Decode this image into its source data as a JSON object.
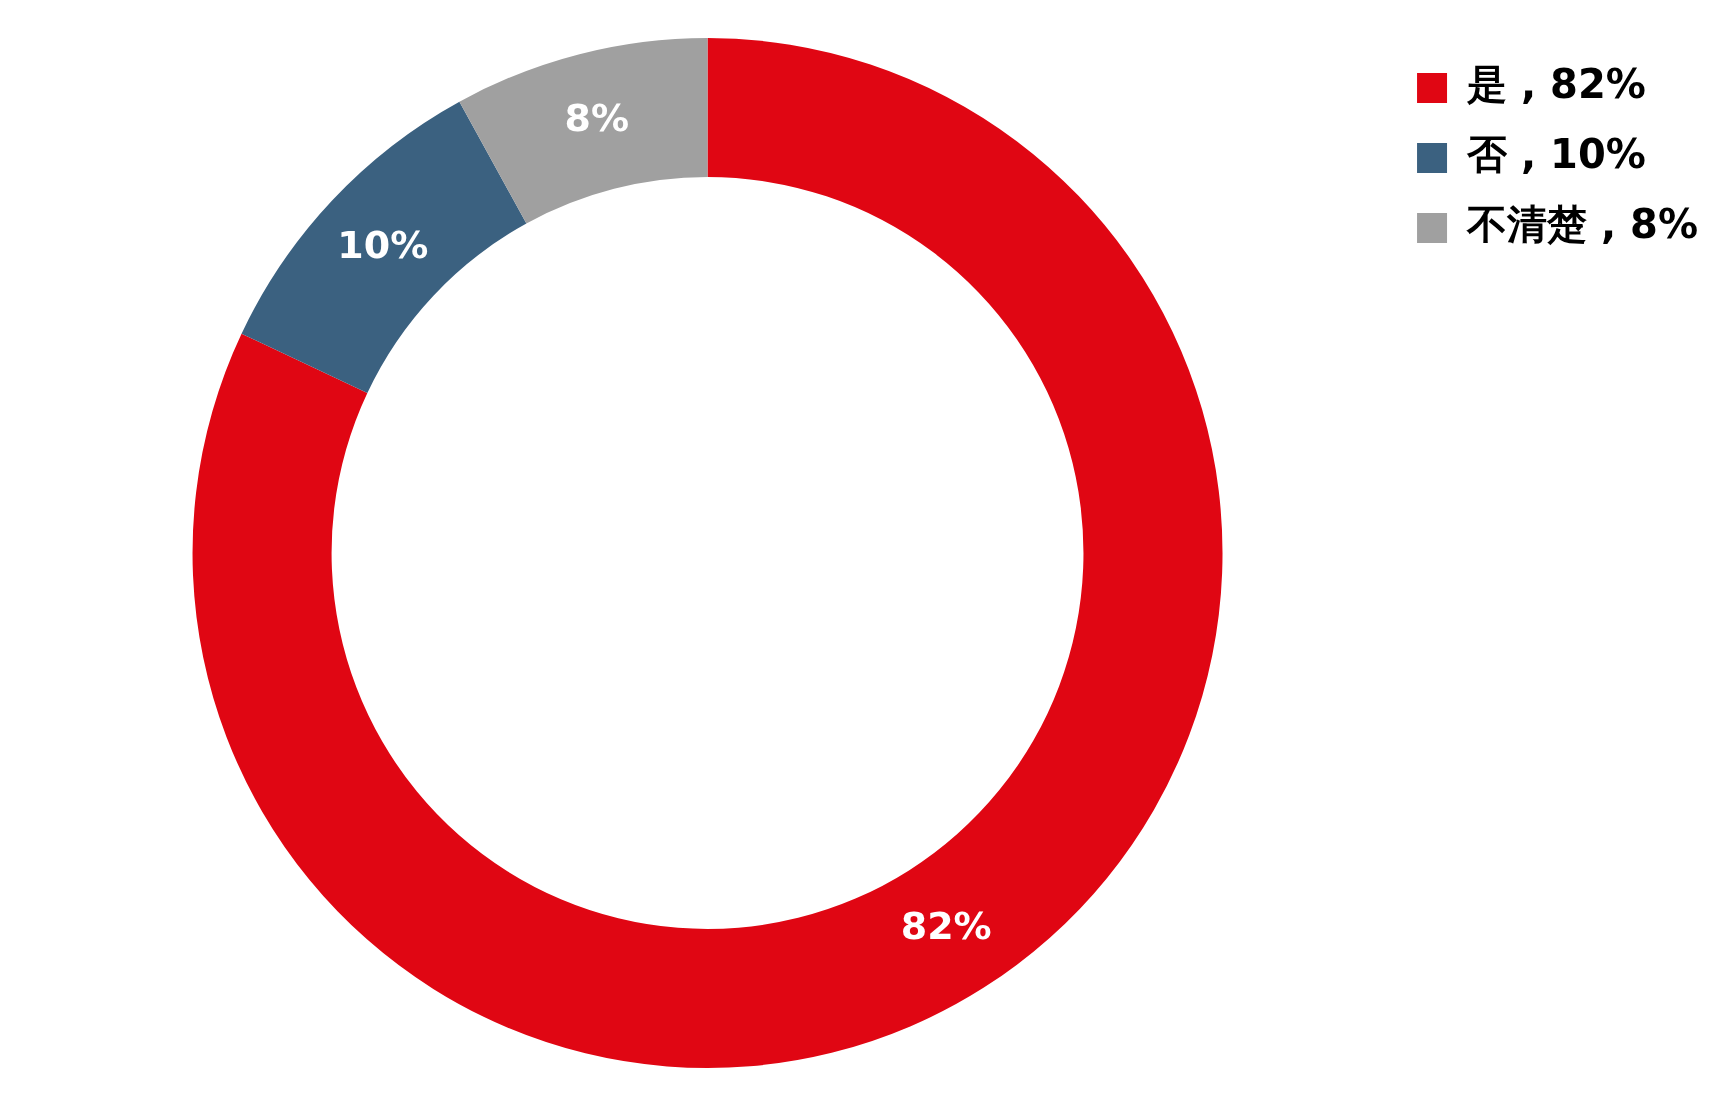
{
  "chart_data": {
    "type": "donut",
    "categories": [
      "是",
      "否",
      "不清楚"
    ],
    "values": [
      82,
      10,
      8
    ],
    "value_labels": [
      "82%",
      "10%",
      "8%"
    ],
    "colors": [
      "#e00613",
      "#3b6180",
      "#a0a0a0"
    ],
    "legend": "top right"
  }
}
